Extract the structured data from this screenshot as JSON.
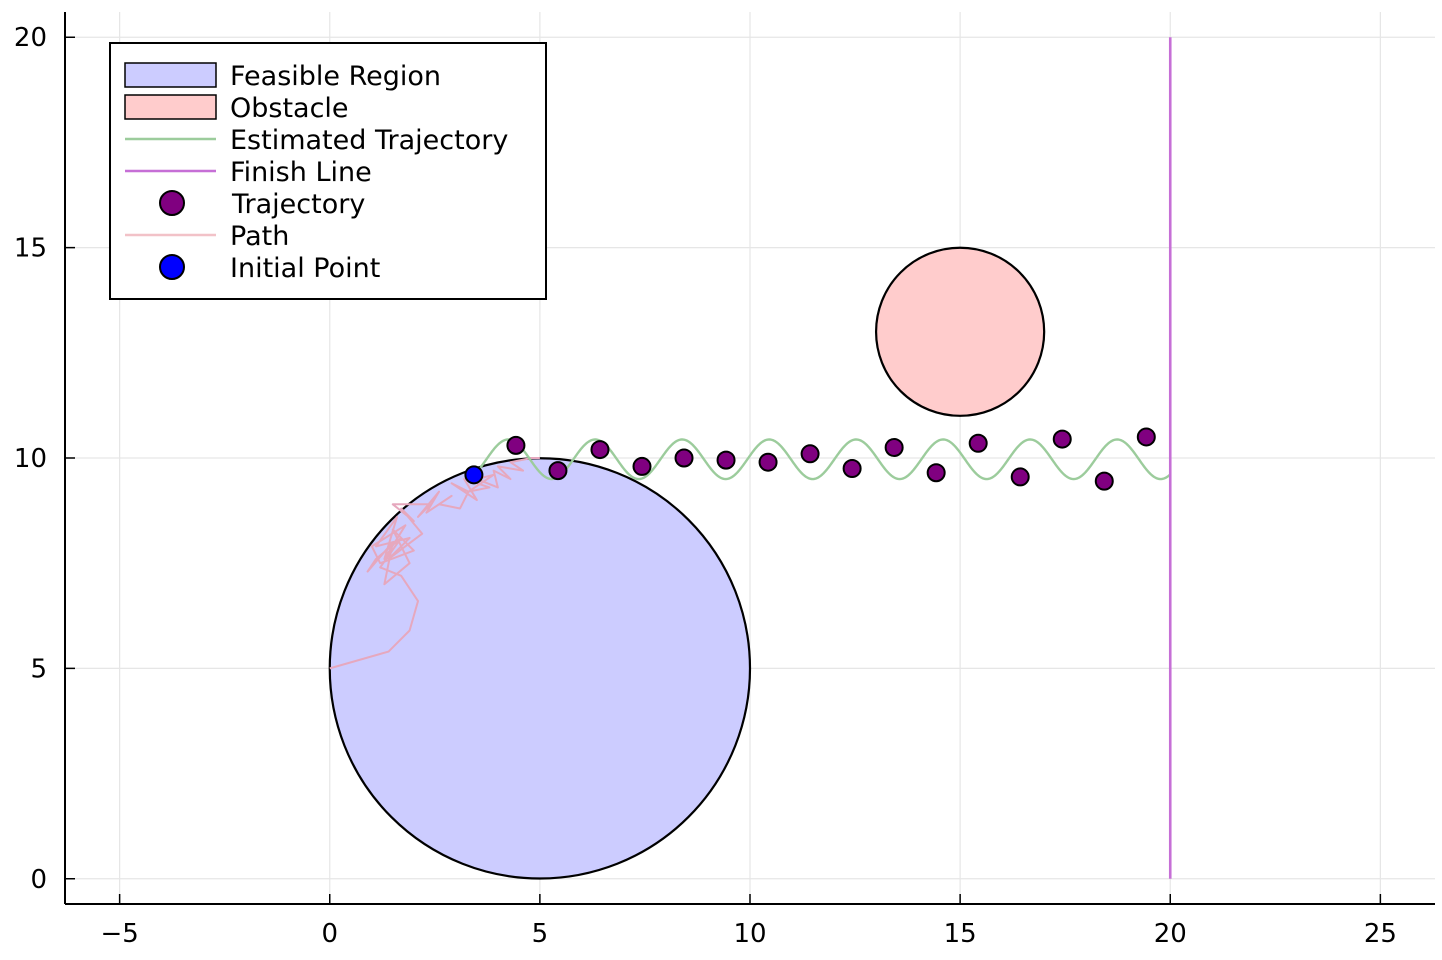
{
  "chart_data": {
    "type": "scatter",
    "title": "",
    "xlabel": "",
    "ylabel": "",
    "xlim": [
      -6.3,
      26.3
    ],
    "ylim": [
      -0.6,
      20.6
    ],
    "xticks": [
      -5,
      0,
      5,
      10,
      15,
      20,
      25
    ],
    "xtick_labels": [
      "−5",
      "0",
      "5",
      "10",
      "15",
      "20",
      "25"
    ],
    "yticks": [
      0,
      5,
      10,
      15,
      20
    ],
    "ytick_labels": [
      "0",
      "5",
      "10",
      "15",
      "20"
    ],
    "grid": true,
    "legend_position": "top-left",
    "feasible_region": {
      "center": [
        5,
        5
      ],
      "radius": 5,
      "color": "#ccccff"
    },
    "obstacle": {
      "center": [
        15,
        13
      ],
      "radius": 2,
      "color": "#ffcccc"
    },
    "finish_line": {
      "x": 20,
      "y_range": [
        0,
        20
      ],
      "color": "#c66fd6"
    },
    "initial_point": {
      "x": 3.43,
      "y": 9.6,
      "color": "#0000ff"
    },
    "trajectory_points": {
      "color": "#800080",
      "x": [
        4.43,
        5.43,
        6.43,
        7.43,
        8.43,
        9.43,
        10.43,
        11.43,
        12.43,
        13.43,
        14.43,
        15.43,
        16.43,
        17.43,
        18.43,
        19.43
      ],
      "y": [
        10.3,
        9.7,
        10.2,
        9.8,
        10.0,
        9.95,
        9.9,
        10.1,
        9.75,
        10.25,
        9.65,
        10.35,
        9.55,
        10.45,
        9.45,
        10.5
      ]
    },
    "estimated_trajectory": {
      "color": "#9ccc9c",
      "x_range": [
        3.43,
        20
      ],
      "center_y": 9.97,
      "amplitude": 0.47,
      "period": 2.07,
      "phase_x": 3.43,
      "phase_y": 9.6
    },
    "path": {
      "color": "#e6a8be",
      "x": [
        0,
        1.4,
        1.9,
        2.1,
        1.7,
        1.2,
        1.7,
        1.1,
        0.9,
        1.5,
        1.3,
        1.9,
        1.5,
        2.0,
        1.2,
        1.0,
        1.8,
        1.3,
        1.6,
        1.1,
        1.9,
        1.4,
        2.2,
        1.7,
        2.0,
        1.5,
        2.4,
        2.1,
        2.6,
        2.3,
        2.9,
        2.6,
        3.1,
        3.3,
        2.9,
        3.5,
        3.2,
        3.8,
        3.3,
        3.9,
        3.5,
        4.0,
        3.9,
        4.3,
        4.0,
        4.6,
        4.3,
        4.8,
        5.0
      ],
      "y": [
        5.0,
        5.4,
        5.9,
        6.6,
        7.2,
        7.4,
        8.1,
        7.6,
        7.3,
        8.0,
        7.0,
        7.5,
        8.3,
        7.8,
        7.5,
        7.9,
        8.4,
        7.6,
        8.6,
        7.9,
        8.1,
        7.6,
        8.2,
        8.8,
        8.5,
        8.9,
        8.9,
        8.6,
        9.2,
        8.7,
        9.1,
        8.9,
        8.8,
        9.2,
        9.4,
        9.0,
        9.5,
        9.3,
        9.2,
        9.6,
        9.5,
        9.3,
        9.7,
        9.5,
        9.8,
        9.7,
        9.9,
        10.0,
        10.0
      ]
    },
    "legend": [
      {
        "label": "Feasible Region",
        "kind": "patch",
        "color": "#ccccff"
      },
      {
        "label": "Obstacle",
        "kind": "patch",
        "color": "#ffcccc"
      },
      {
        "label": "Estimated Trajectory",
        "kind": "line",
        "color": "#9ccc9c"
      },
      {
        "label": "Finish Line",
        "kind": "line",
        "color": "#c66fd6"
      },
      {
        "label": "Trajectory",
        "kind": "marker",
        "color": "#800080"
      },
      {
        "label": "Path",
        "kind": "line",
        "color": "#f2c2c8"
      },
      {
        "label": "Initial Point",
        "kind": "marker",
        "color": "#0000ff"
      }
    ]
  }
}
